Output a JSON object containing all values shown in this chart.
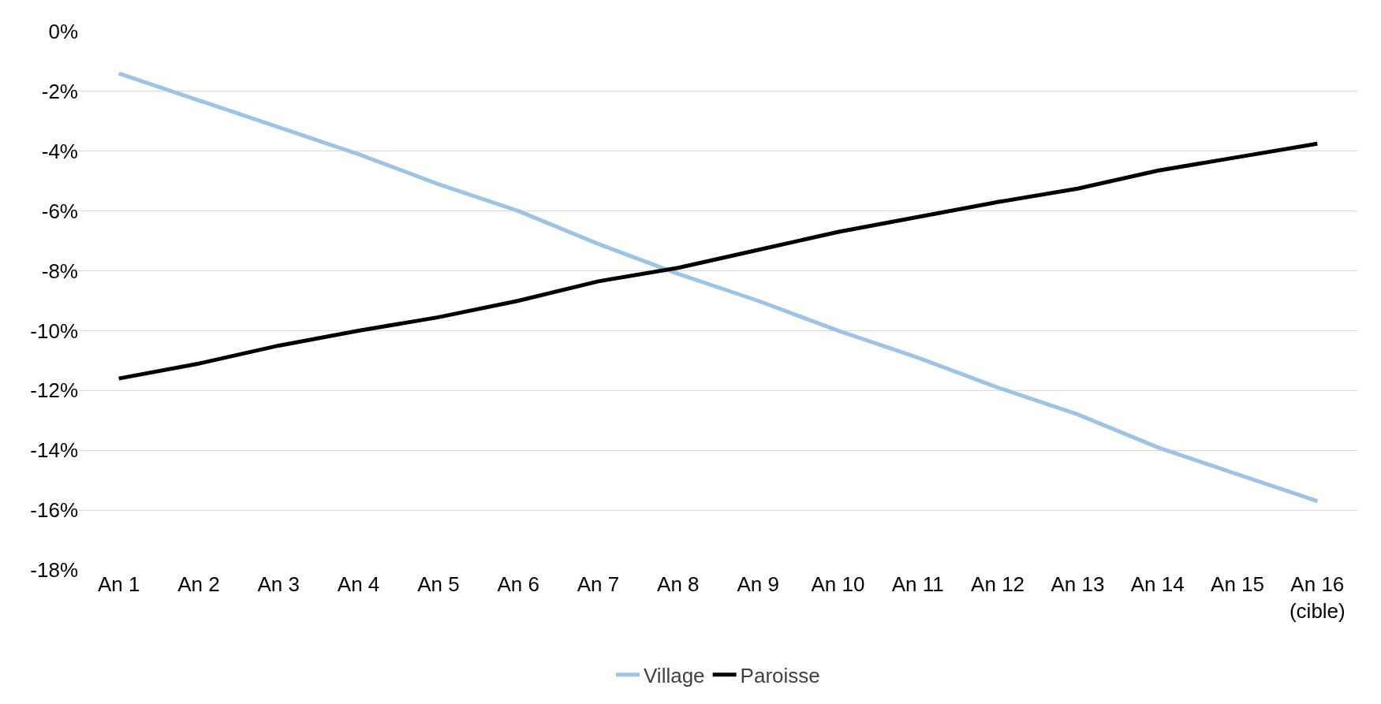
{
  "chart_data": {
    "type": "line",
    "categories": [
      "An 1",
      "An 2",
      "An 3",
      "An 4",
      "An 5",
      "An 6",
      "An 7",
      "An 8",
      "An 9",
      "An 10",
      "An 11",
      "An 12",
      "An 13",
      "An 14",
      "An 15",
      "An 16\n(cible)"
    ],
    "series": [
      {
        "name": "Village",
        "color": "#9dc3e6",
        "values": [
          -1.4,
          -2.3,
          -3.2,
          -4.1,
          -5.1,
          -6.0,
          -7.1,
          -8.1,
          -9.0,
          -10.0,
          -10.9,
          -11.9,
          -12.8,
          -13.9,
          -14.8,
          -15.7
        ]
      },
      {
        "name": "Paroisse",
        "color": "#000000",
        "values": [
          -11.6,
          -11.1,
          -10.5,
          -10.0,
          -9.55,
          -9.0,
          -8.35,
          -7.9,
          -7.3,
          -6.7,
          -6.2,
          -5.7,
          -5.25,
          -4.65,
          -4.2,
          -3.75
        ]
      }
    ],
    "ylim": [
      -18,
      0
    ],
    "yticks": [
      {
        "value": 0,
        "label": "0%"
      },
      {
        "value": -2,
        "label": "-2%"
      },
      {
        "value": -4,
        "label": "-4%"
      },
      {
        "value": -6,
        "label": "-6%"
      },
      {
        "value": -8,
        "label": "-8%"
      },
      {
        "value": -10,
        "label": "-10%"
      },
      {
        "value": -12,
        "label": "-12%"
      },
      {
        "value": -14,
        "label": "-14%"
      },
      {
        "value": -16,
        "label": "-16%"
      },
      {
        "value": -18,
        "label": "-18%"
      }
    ],
    "grid": "y",
    "legend": "bottom",
    "marker": "none",
    "line_style": "solid"
  }
}
